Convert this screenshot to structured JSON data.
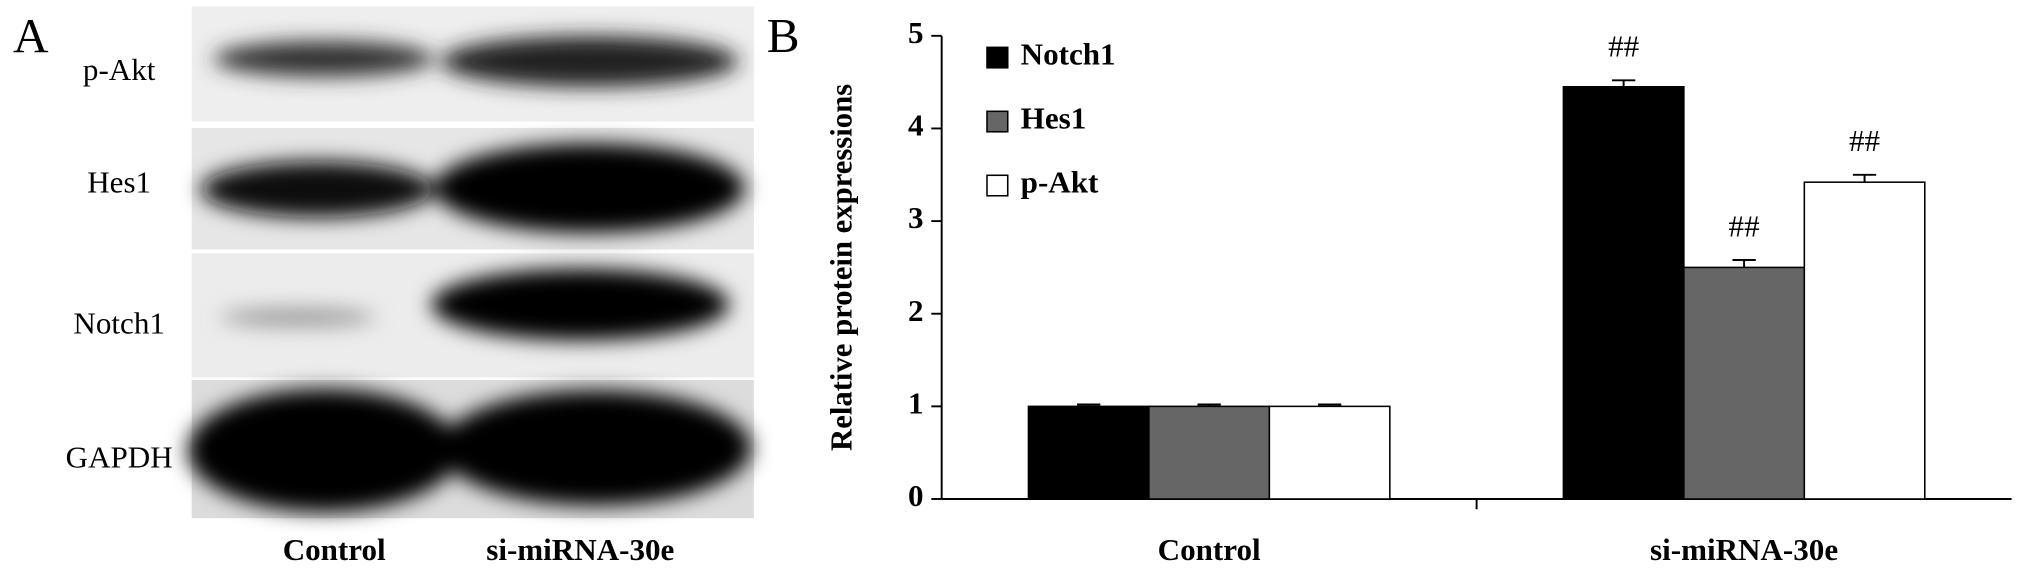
{
  "panel_a": {
    "label": "A",
    "rows": [
      "p-Akt",
      "Hes1",
      "Notch1",
      "GAPDH"
    ],
    "lanes": [
      "Control",
      "si-miRNA-30e"
    ]
  },
  "chart_data": {
    "type": "bar",
    "label": "B",
    "y_label": "Relative protein expressions",
    "categories": [
      "Control",
      "si-miRNA-30e"
    ],
    "series": [
      {
        "name": "Notch1",
        "color": "#000000",
        "values": [
          1.0,
          4.45
        ],
        "errors": [
          0.02,
          0.07
        ],
        "annotations": [
          null,
          "##"
        ]
      },
      {
        "name": "Hes1",
        "color": "#666666",
        "values": [
          1.0,
          2.5
        ],
        "errors": [
          0.02,
          0.08
        ],
        "annotations": [
          null,
          "##"
        ]
      },
      {
        "name": "p-Akt",
        "color": "#ffffff",
        "values": [
          1.0,
          3.42
        ],
        "errors": [
          0.02,
          0.08
        ],
        "annotations": [
          null,
          "##"
        ]
      }
    ],
    "ylim": [
      0,
      5
    ],
    "yticks": [
      0,
      1,
      2,
      3,
      4,
      5
    ],
    "legend": "top-left"
  }
}
